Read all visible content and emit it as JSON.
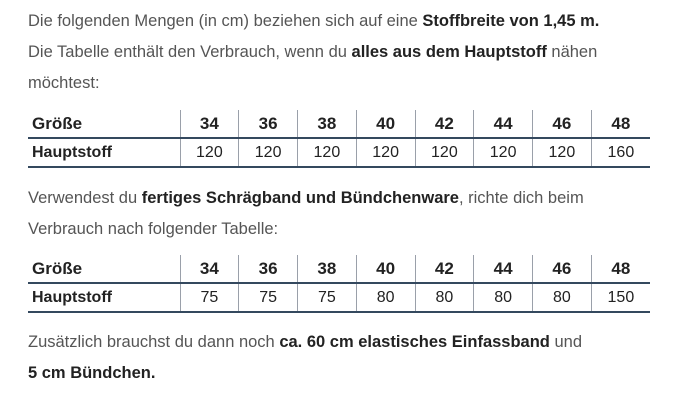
{
  "intro": {
    "line1_pre": "Die folgenden Mengen (in cm) beziehen sich auf eine ",
    "line1_bold": "Stoffbreite von 1,45 m.",
    "line2_pre": "Die Tabelle enthält den Verbrauch, wenn du ",
    "line2_bold": "alles aus dem Hauptstoff",
    "line2_post": " nähen",
    "line3": "möchtest:"
  },
  "table1": {
    "header_label": "Größe",
    "sizes": [
      "34",
      "36",
      "38",
      "40",
      "42",
      "44",
      "46",
      "48"
    ],
    "row_label": "Hauptstoff",
    "values": [
      "120",
      "120",
      "120",
      "120",
      "120",
      "120",
      "120",
      "160"
    ]
  },
  "middle": {
    "line1_pre": "Verwendest du ",
    "line1_bold": "fertiges Schrägband und Bündchenware",
    "line1_post": ", richte dich beim",
    "line2": "Verbrauch nach folgender Tabelle:"
  },
  "table2": {
    "header_label": "Größe",
    "sizes": [
      "34",
      "36",
      "38",
      "40",
      "42",
      "44",
      "46",
      "48"
    ],
    "row_label": "Hauptstoff",
    "values": [
      "75",
      "75",
      "75",
      "80",
      "80",
      "80",
      "80",
      "150"
    ]
  },
  "footer": {
    "line1_pre": "Zusätzlich brauchst du dann noch ",
    "line1_bold": "ca. 60 cm elastisches Einfassband",
    "line1_post": " und",
    "line2_bold": "5 cm Bündchen."
  }
}
